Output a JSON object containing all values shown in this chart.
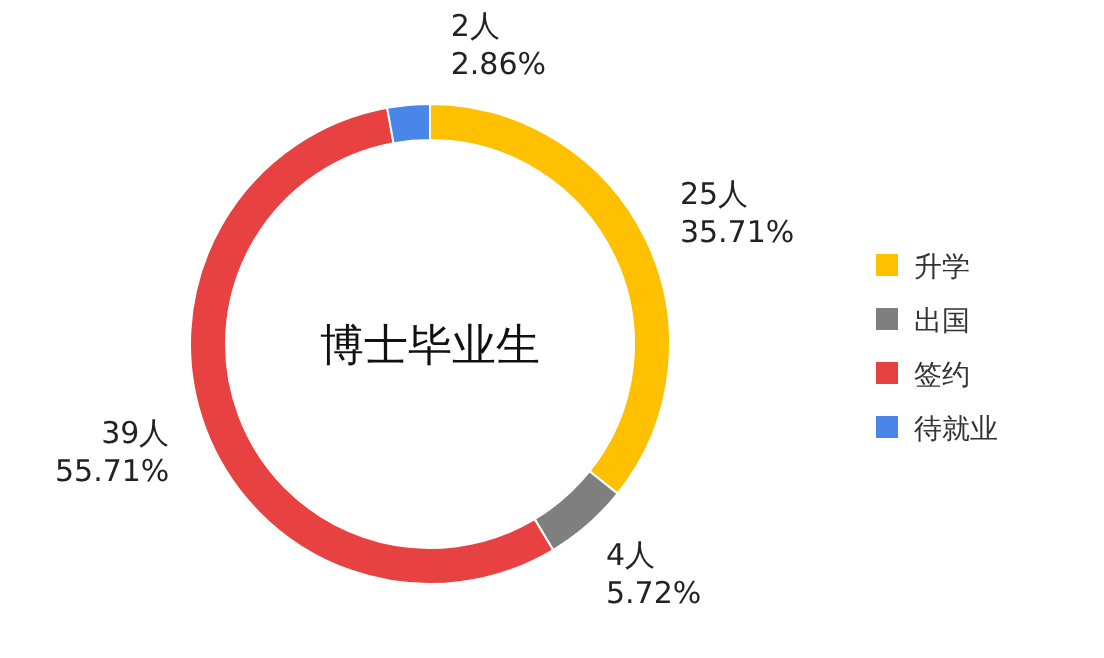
{
  "chart_data": {
    "type": "donut",
    "title": "博士毕业生",
    "categories": [
      "升学",
      "出国",
      "签约",
      "待就业"
    ],
    "values": [
      25,
      4,
      39,
      2
    ],
    "value_labels": [
      "25人\n35.71%",
      "4人\n5.72%",
      "39人\n55.71%",
      "2人\n2.86%"
    ],
    "colors": [
      "#ffc000",
      "#7f7f7f",
      "#e84141",
      "#4a86e8"
    ],
    "legend": "right"
  }
}
